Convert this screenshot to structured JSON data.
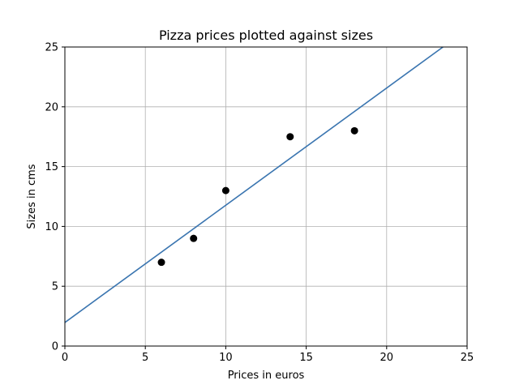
{
  "chart_data": {
    "type": "scatter",
    "title": "Pizza prices plotted against sizes",
    "xlabel": "Prices in euros",
    "ylabel": "Sizes in cms",
    "xlim": [
      0,
      25
    ],
    "ylim": [
      0,
      25
    ],
    "xticks": [
      0,
      5,
      10,
      15,
      20,
      25
    ],
    "yticks": [
      0,
      5,
      10,
      15,
      20,
      25
    ],
    "grid": true,
    "series": [
      {
        "kind": "scatter",
        "color": "#000000",
        "points": [
          {
            "x": 6,
            "y": 7
          },
          {
            "x": 8,
            "y": 9
          },
          {
            "x": 10,
            "y": 13
          },
          {
            "x": 14,
            "y": 17.5
          },
          {
            "x": 18,
            "y": 18
          }
        ]
      },
      {
        "kind": "line",
        "color": "#3a75b0",
        "points": [
          {
            "x": 0,
            "y": 1.97
          },
          {
            "x": 23.5,
            "y": 25
          }
        ]
      }
    ]
  }
}
